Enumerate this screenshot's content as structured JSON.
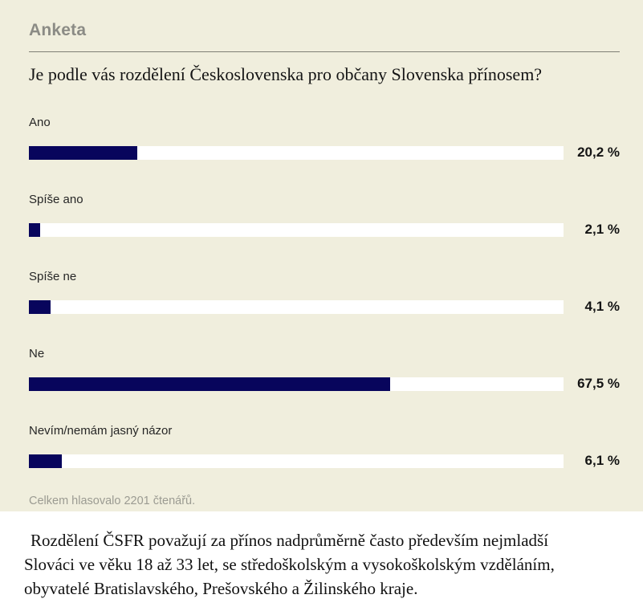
{
  "poll": {
    "title": "Anketa",
    "question": "Je podle vás rozdělení Československa pro občany Slovenska přínosem?",
    "total_text": "Celkem hlasovalo 2201 čtenářů."
  },
  "chart_data": {
    "type": "bar",
    "orientation": "horizontal",
    "title": "Je podle vás rozdělení Československa pro občany Slovenska přínosem?",
    "categories": [
      "Ano",
      "Spíše ano",
      "Spíše ne",
      "Ne",
      "Nevím/nemám jasný názor"
    ],
    "values": [
      20.2,
      2.1,
      4.1,
      67.5,
      6.1
    ],
    "value_labels": [
      "20,2 %",
      "2,1 %",
      "4,1 %",
      "67,5 %",
      "6,1 %"
    ],
    "xlim": [
      0,
      100
    ],
    "grid": false,
    "legend": false,
    "note": "Celkem hlasovalo 2201 čtenářů."
  },
  "colors": {
    "panel_bg": "#f0eedd",
    "bar_fill": "#08055c",
    "bar_track": "#ffffff",
    "title_gray": "#8b8b85",
    "divider": "#7f7f75",
    "footer_gray": "#9b9b92"
  },
  "article": {
    "lines": [
      "Rozdělení ČSFR považují za přínos nadprůměrně často především nejmladší",
      "Slováci ve věku 18 až 33 let, se středoškolským a vysokoškolským vzděláním,",
      "obyvatelé Bratislavského, Prešovského a Žilinského kraje."
    ]
  }
}
